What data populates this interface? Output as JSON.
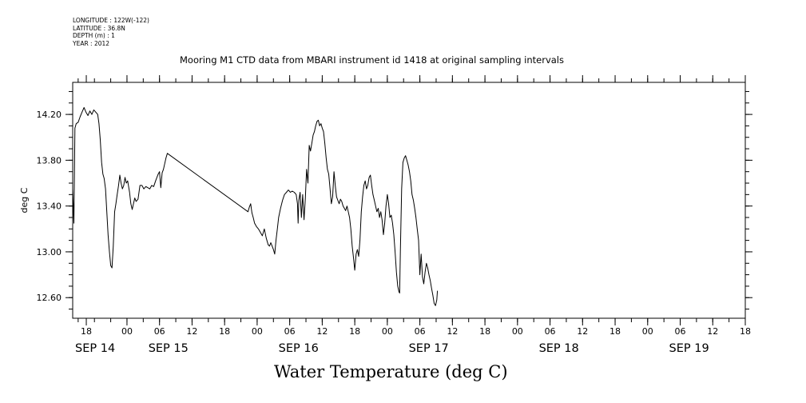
{
  "header": {
    "longitude": "LONGITUDE : 122W(-122)",
    "latitude": "LATITUDE : 36.8N",
    "depth": "DEPTH (m) : 1",
    "year": "YEAR : 2012",
    "title": "Mooring M1 CTD data from MBARI instrument id 1418 at original sampling intervals"
  },
  "footer": {
    "variable_title": "Water Temperature (deg C)"
  },
  "chart_data": {
    "type": "line",
    "title": "Mooring M1 CTD data from MBARI instrument id 1418 at original sampling intervals",
    "xlabel": "",
    "ylabel": "deg C",
    "ylim": [
      12.42,
      14.48
    ],
    "xlim": [
      -0.167,
      5.0
    ],
    "y_ticks": [
      12.6,
      13.0,
      13.4,
      13.8,
      14.2
    ],
    "y_tick_labels": [
      "12.60",
      "13.00",
      "13.40",
      "13.80",
      "14.20"
    ],
    "x_hour_ticks": [
      {
        "x": -0.0625,
        "label": "18"
      },
      {
        "x": 0.25,
        "label": "00"
      },
      {
        "x": 0.5,
        "label": "06"
      },
      {
        "x": 0.75,
        "label": "12"
      },
      {
        "x": 1.0,
        "label": "18"
      },
      {
        "x": 1.25,
        "label": "00"
      },
      {
        "x": 1.5,
        "label": "06"
      },
      {
        "x": 1.75,
        "label": "12"
      },
      {
        "x": 2.0,
        "label": "18"
      },
      {
        "x": 2.25,
        "label": "00"
      },
      {
        "x": 2.5,
        "label": "06"
      },
      {
        "x": 2.75,
        "label": "12"
      },
      {
        "x": 3.0,
        "label": "18"
      },
      {
        "x": 3.25,
        "label": "00"
      },
      {
        "x": 3.5,
        "label": "06"
      },
      {
        "x": 3.75,
        "label": "12"
      },
      {
        "x": 4.0,
        "label": "18"
      },
      {
        "x": 4.25,
        "label": "00"
      },
      {
        "x": 4.5,
        "label": "06"
      },
      {
        "x": 4.75,
        "label": "12"
      },
      {
        "x": 5.0,
        "label": "18"
      }
    ],
    "x_date_labels": [
      {
        "x": -0.0625,
        "label": "SEP 14"
      },
      {
        "x": 0.5,
        "label": "SEP 15"
      },
      {
        "x": 1.5,
        "label": "SEP 16"
      },
      {
        "x": 2.5,
        "label": "SEP 17"
      },
      {
        "x": 3.5,
        "label": "SEP 18"
      },
      {
        "x": 4.5,
        "label": "SEP 19"
      }
    ],
    "x_units": "days (SEP 14 18:00 = 0)",
    "series": [
      {
        "name": "Water Temperature",
        "points": [
          [
            -0.167,
            13.55
          ],
          [
            -0.158,
            13.25
          ],
          [
            -0.15,
            14.08
          ],
          [
            -0.14,
            14.12
          ],
          [
            -0.125,
            14.13
          ],
          [
            -0.11,
            14.18
          ],
          [
            -0.095,
            14.22
          ],
          [
            -0.08,
            14.26
          ],
          [
            -0.065,
            14.22
          ],
          [
            -0.05,
            14.19
          ],
          [
            -0.035,
            14.23
          ],
          [
            -0.02,
            14.2
          ],
          [
            -0.005,
            14.24
          ],
          [
            0.01,
            14.22
          ],
          [
            0.025,
            14.2
          ],
          [
            0.035,
            14.12
          ],
          [
            0.045,
            13.98
          ],
          [
            0.055,
            13.78
          ],
          [
            0.065,
            13.68
          ],
          [
            0.075,
            13.64
          ],
          [
            0.085,
            13.55
          ],
          [
            0.095,
            13.35
          ],
          [
            0.105,
            13.15
          ],
          [
            0.115,
            13.0
          ],
          [
            0.125,
            12.88
          ],
          [
            0.135,
            12.86
          ],
          [
            0.145,
            13.05
          ],
          [
            0.155,
            13.35
          ],
          [
            0.165,
            13.42
          ],
          [
            0.175,
            13.5
          ],
          [
            0.185,
            13.58
          ],
          [
            0.195,
            13.67
          ],
          [
            0.205,
            13.6
          ],
          [
            0.215,
            13.55
          ],
          [
            0.225,
            13.58
          ],
          [
            0.235,
            13.65
          ],
          [
            0.245,
            13.6
          ],
          [
            0.255,
            13.62
          ],
          [
            0.27,
            13.52
          ],
          [
            0.28,
            13.42
          ],
          [
            0.29,
            13.37
          ],
          [
            0.3,
            13.42
          ],
          [
            0.31,
            13.47
          ],
          [
            0.32,
            13.44
          ],
          [
            0.335,
            13.46
          ],
          [
            0.35,
            13.58
          ],
          [
            0.365,
            13.58
          ],
          [
            0.38,
            13.55
          ],
          [
            0.395,
            13.57
          ],
          [
            0.41,
            13.56
          ],
          [
            0.425,
            13.55
          ],
          [
            0.44,
            13.58
          ],
          [
            0.455,
            13.57
          ],
          [
            0.47,
            13.62
          ],
          [
            0.48,
            13.65
          ],
          [
            0.49,
            13.68
          ],
          [
            0.5,
            13.7
          ],
          [
            0.51,
            13.56
          ],
          [
            0.52,
            13.69
          ],
          [
            0.53,
            13.72
          ],
          [
            0.54,
            13.77
          ],
          [
            0.55,
            13.82
          ],
          [
            0.56,
            13.86
          ],
          [
            1.18,
            13.35
          ],
          [
            1.19,
            13.39
          ],
          [
            1.2,
            13.42
          ],
          [
            1.21,
            13.34
          ],
          [
            1.22,
            13.3
          ],
          [
            1.23,
            13.25
          ],
          [
            1.245,
            13.22
          ],
          [
            1.26,
            13.2
          ],
          [
            1.275,
            13.17
          ],
          [
            1.29,
            13.14
          ],
          [
            1.305,
            13.2
          ],
          [
            1.32,
            13.12
          ],
          [
            1.335,
            13.06
          ],
          [
            1.345,
            13.05
          ],
          [
            1.355,
            13.08
          ],
          [
            1.365,
            13.05
          ],
          [
            1.375,
            13.02
          ],
          [
            1.385,
            12.98
          ],
          [
            1.395,
            13.1
          ],
          [
            1.405,
            13.2
          ],
          [
            1.415,
            13.3
          ],
          [
            1.43,
            13.38
          ],
          [
            1.445,
            13.45
          ],
          [
            1.46,
            13.5
          ],
          [
            1.475,
            13.52
          ],
          [
            1.49,
            13.54
          ],
          [
            1.505,
            13.52
          ],
          [
            1.52,
            13.53
          ],
          [
            1.535,
            13.52
          ],
          [
            1.55,
            13.5
          ],
          [
            1.56,
            13.42
          ],
          [
            1.565,
            13.25
          ],
          [
            1.57,
            13.45
          ],
          [
            1.58,
            13.52
          ],
          [
            1.59,
            13.3
          ],
          [
            1.6,
            13.5
          ],
          [
            1.61,
            13.28
          ],
          [
            1.62,
            13.46
          ],
          [
            1.63,
            13.72
          ],
          [
            1.64,
            13.6
          ],
          [
            1.65,
            13.93
          ],
          [
            1.66,
            13.88
          ],
          [
            1.67,
            13.95
          ],
          [
            1.68,
            14.02
          ],
          [
            1.69,
            14.05
          ],
          [
            1.7,
            14.1
          ],
          [
            1.71,
            14.14
          ],
          [
            1.72,
            14.15
          ],
          [
            1.73,
            14.1
          ],
          [
            1.74,
            14.12
          ],
          [
            1.75,
            14.08
          ],
          [
            1.76,
            14.05
          ],
          [
            1.77,
            13.95
          ],
          [
            1.78,
            13.82
          ],
          [
            1.79,
            13.72
          ],
          [
            1.8,
            13.68
          ],
          [
            1.81,
            13.55
          ],
          [
            1.82,
            13.42
          ],
          [
            1.83,
            13.48
          ],
          [
            1.84,
            13.7
          ],
          [
            1.85,
            13.58
          ],
          [
            1.86,
            13.48
          ],
          [
            1.87,
            13.45
          ],
          [
            1.88,
            13.42
          ],
          [
            1.89,
            13.46
          ],
          [
            1.9,
            13.44
          ],
          [
            1.91,
            13.4
          ],
          [
            1.92,
            13.38
          ],
          [
            1.93,
            13.36
          ],
          [
            1.94,
            13.4
          ],
          [
            1.95,
            13.35
          ],
          [
            1.96,
            13.3
          ],
          [
            1.97,
            13.2
          ],
          [
            1.98,
            13.05
          ],
          [
            1.99,
            12.95
          ],
          [
            2.0,
            12.84
          ],
          [
            2.01,
            12.98
          ],
          [
            2.02,
            13.02
          ],
          [
            2.03,
            12.96
          ],
          [
            2.04,
            13.1
          ],
          [
            2.05,
            13.35
          ],
          [
            2.06,
            13.48
          ],
          [
            2.07,
            13.58
          ],
          [
            2.08,
            13.62
          ],
          [
            2.09,
            13.55
          ],
          [
            2.1,
            13.58
          ],
          [
            2.11,
            13.65
          ],
          [
            2.12,
            13.67
          ],
          [
            2.13,
            13.58
          ],
          [
            2.14,
            13.5
          ],
          [
            2.15,
            13.45
          ],
          [
            2.16,
            13.4
          ],
          [
            2.17,
            13.35
          ],
          [
            2.18,
            13.38
          ],
          [
            2.19,
            13.3
          ],
          [
            2.2,
            13.35
          ],
          [
            2.21,
            13.28
          ],
          [
            2.22,
            13.15
          ],
          [
            2.23,
            13.25
          ],
          [
            2.24,
            13.4
          ],
          [
            2.25,
            13.5
          ],
          [
            2.26,
            13.42
          ],
          [
            2.27,
            13.3
          ],
          [
            2.28,
            13.32
          ],
          [
            2.29,
            13.25
          ],
          [
            2.3,
            13.15
          ],
          [
            2.31,
            13.0
          ],
          [
            2.32,
            12.82
          ],
          [
            2.33,
            12.7
          ],
          [
            2.34,
            12.65
          ],
          [
            2.345,
            12.64
          ],
          [
            2.35,
            13.0
          ],
          [
            2.36,
            13.55
          ],
          [
            2.37,
            13.78
          ],
          [
            2.38,
            13.82
          ],
          [
            2.39,
            13.84
          ],
          [
            2.4,
            13.8
          ],
          [
            2.41,
            13.76
          ],
          [
            2.42,
            13.7
          ],
          [
            2.43,
            13.62
          ],
          [
            2.44,
            13.5
          ],
          [
            2.45,
            13.45
          ],
          [
            2.46,
            13.38
          ],
          [
            2.47,
            13.3
          ],
          [
            2.48,
            13.2
          ],
          [
            2.49,
            13.1
          ],
          [
            2.5,
            12.8
          ],
          [
            2.51,
            12.98
          ],
          [
            2.52,
            12.78
          ],
          [
            2.53,
            12.72
          ],
          [
            2.54,
            12.82
          ],
          [
            2.55,
            12.9
          ],
          [
            2.56,
            12.86
          ],
          [
            2.57,
            12.8
          ],
          [
            2.58,
            12.75
          ],
          [
            2.59,
            12.68
          ],
          [
            2.6,
            12.62
          ],
          [
            2.61,
            12.55
          ],
          [
            2.62,
            12.53
          ],
          [
            2.63,
            12.58
          ],
          [
            2.635,
            12.66
          ]
        ]
      }
    ]
  }
}
